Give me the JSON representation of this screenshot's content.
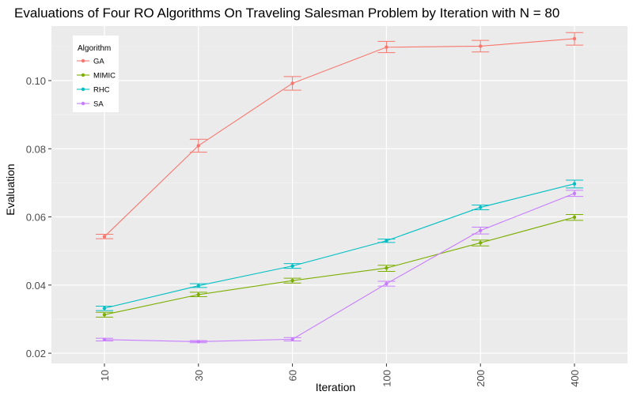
{
  "chart_data": {
    "type": "line",
    "title": "Evaluations of Four RO Algorithms On Traveling Salesman Problem by Iteration with N = 80",
    "xlabel": "Iteration",
    "ylabel": "Evaluation",
    "categories": [
      "10",
      "30",
      "60",
      "100",
      "200",
      "400"
    ],
    "ylim": [
      0.017,
      0.116
    ],
    "yticks": [
      0.02,
      0.04,
      0.06,
      0.08,
      0.1
    ],
    "ytick_labels": [
      "0.02",
      "0.04",
      "0.06",
      "0.08",
      "0.10"
    ],
    "grid": true,
    "legend": {
      "title": "Algorithm",
      "position": "top-left"
    },
    "series": [
      {
        "name": "GA",
        "color": "#F8766D",
        "values": [
          0.0542,
          0.0809,
          0.0992,
          0.1098,
          0.1101,
          0.1123
        ],
        "lower": [
          0.0536,
          0.079,
          0.0972,
          0.1082,
          0.1084,
          0.1104
        ],
        "upper": [
          0.0549,
          0.0828,
          0.1012,
          0.1115,
          0.1118,
          0.1141
        ]
      },
      {
        "name": "MIMIC",
        "color": "#7CAE00",
        "values": [
          0.0313,
          0.0372,
          0.0413,
          0.045,
          0.0524,
          0.0599
        ],
        "lower": [
          0.0306,
          0.0366,
          0.0406,
          0.044,
          0.0515,
          0.059
        ],
        "upper": [
          0.032,
          0.0379,
          0.042,
          0.0458,
          0.0532,
          0.0607
        ]
      },
      {
        "name": "RHC",
        "color": "#00BFC4",
        "values": [
          0.0332,
          0.0398,
          0.0456,
          0.053,
          0.0628,
          0.0697
        ],
        "lower": [
          0.0325,
          0.0393,
          0.0449,
          0.0525,
          0.0621,
          0.0685
        ],
        "upper": [
          0.0338,
          0.0404,
          0.0463,
          0.0535,
          0.0635,
          0.0708
        ]
      },
      {
        "name": "SA",
        "color": "#C77CFF",
        "values": [
          0.024,
          0.0234,
          0.0241,
          0.0404,
          0.056,
          0.0669
        ],
        "lower": [
          0.0236,
          0.0231,
          0.0236,
          0.0397,
          0.055,
          0.066
        ],
        "upper": [
          0.0244,
          0.0237,
          0.0246,
          0.0411,
          0.057,
          0.0678
        ]
      }
    ]
  }
}
